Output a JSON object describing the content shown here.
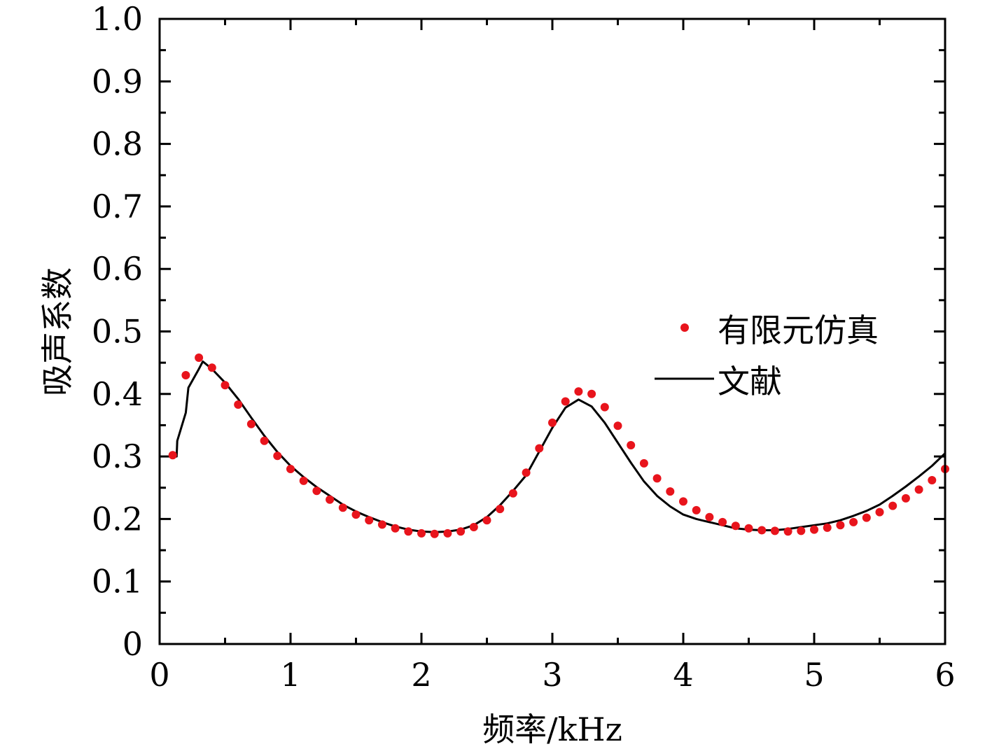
{
  "chart_data": {
    "type": "line",
    "title": "",
    "xlabel": "频率/kHz",
    "ylabel": "吸声系数",
    "xlim": [
      0,
      6
    ],
    "ylim": [
      0,
      1.0
    ],
    "grid": false,
    "legend_position": "right",
    "x_ticks": [
      {
        "value": 0,
        "label": "0"
      },
      {
        "value": 1,
        "label": "1"
      },
      {
        "value": 2,
        "label": "2"
      },
      {
        "value": 3,
        "label": "3"
      },
      {
        "value": 4,
        "label": "4"
      },
      {
        "value": 5,
        "label": "5"
      },
      {
        "value": 6,
        "label": "6"
      }
    ],
    "y_ticks": [
      {
        "value": 0,
        "label": "0"
      },
      {
        "value": 0.1,
        "label": "0.1"
      },
      {
        "value": 0.2,
        "label": "0.2"
      },
      {
        "value": 0.3,
        "label": "0.3"
      },
      {
        "value": 0.4,
        "label": "0.4"
      },
      {
        "value": 0.5,
        "label": "0.5"
      },
      {
        "value": 0.6,
        "label": "0.6"
      },
      {
        "value": 0.7,
        "label": "0.7"
      },
      {
        "value": 0.8,
        "label": "0.8"
      },
      {
        "value": 0.9,
        "label": "0.9"
      },
      {
        "value": 1.0,
        "label": "1.0"
      }
    ],
    "series": [
      {
        "name": "有限元仿真",
        "kind": "scatter",
        "color": "#e8141c",
        "points": [
          [
            0.1,
            0.302
          ],
          [
            0.2,
            0.43
          ],
          [
            0.3,
            0.458
          ],
          [
            0.4,
            0.442
          ],
          [
            0.5,
            0.414
          ],
          [
            0.6,
            0.383
          ],
          [
            0.7,
            0.352
          ],
          [
            0.8,
            0.325
          ],
          [
            0.9,
            0.301
          ],
          [
            1.0,
            0.28
          ],
          [
            1.1,
            0.261
          ],
          [
            1.2,
            0.245
          ],
          [
            1.3,
            0.231
          ],
          [
            1.4,
            0.218
          ],
          [
            1.5,
            0.207
          ],
          [
            1.6,
            0.198
          ],
          [
            1.7,
            0.191
          ],
          [
            1.8,
            0.185
          ],
          [
            1.9,
            0.18
          ],
          [
            2.0,
            0.177
          ],
          [
            2.1,
            0.176
          ],
          [
            2.2,
            0.177
          ],
          [
            2.3,
            0.18
          ],
          [
            2.4,
            0.187
          ],
          [
            2.5,
            0.198
          ],
          [
            2.6,
            0.216
          ],
          [
            2.7,
            0.241
          ],
          [
            2.8,
            0.274
          ],
          [
            2.9,
            0.313
          ],
          [
            3.0,
            0.354
          ],
          [
            3.1,
            0.388
          ],
          [
            3.2,
            0.404
          ],
          [
            3.3,
            0.4
          ],
          [
            3.4,
            0.379
          ],
          [
            3.5,
            0.349
          ],
          [
            3.6,
            0.318
          ],
          [
            3.7,
            0.289
          ],
          [
            3.8,
            0.265
          ],
          [
            3.9,
            0.244
          ],
          [
            4.0,
            0.228
          ],
          [
            4.1,
            0.214
          ],
          [
            4.2,
            0.203
          ],
          [
            4.3,
            0.195
          ],
          [
            4.4,
            0.189
          ],
          [
            4.5,
            0.185
          ],
          [
            4.6,
            0.182
          ],
          [
            4.7,
            0.181
          ],
          [
            4.8,
            0.18
          ],
          [
            4.9,
            0.181
          ],
          [
            5.0,
            0.183
          ],
          [
            5.1,
            0.186
          ],
          [
            5.2,
            0.19
          ],
          [
            5.3,
            0.195
          ],
          [
            5.4,
            0.202
          ],
          [
            5.5,
            0.211
          ],
          [
            5.6,
            0.221
          ],
          [
            5.7,
            0.233
          ],
          [
            5.8,
            0.247
          ],
          [
            5.9,
            0.262
          ],
          [
            6.0,
            0.28
          ]
        ]
      },
      {
        "name": "文献",
        "kind": "line",
        "color": "#000000",
        "points": [
          [
            0.1,
            0.3
          ],
          [
            0.13,
            0.3
          ],
          [
            0.135,
            0.325
          ],
          [
            0.2,
            0.37
          ],
          [
            0.22,
            0.41
          ],
          [
            0.3,
            0.44
          ],
          [
            0.33,
            0.452
          ],
          [
            0.4,
            0.44
          ],
          [
            0.5,
            0.418
          ],
          [
            0.6,
            0.392
          ],
          [
            0.7,
            0.362
          ],
          [
            0.8,
            0.333
          ],
          [
            0.9,
            0.307
          ],
          [
            1.0,
            0.285
          ],
          [
            1.1,
            0.267
          ],
          [
            1.2,
            0.251
          ],
          [
            1.3,
            0.237
          ],
          [
            1.4,
            0.223
          ],
          [
            1.5,
            0.212
          ],
          [
            1.6,
            0.203
          ],
          [
            1.7,
            0.195
          ],
          [
            1.8,
            0.188
          ],
          [
            1.9,
            0.183
          ],
          [
            2.0,
            0.18
          ],
          [
            2.1,
            0.179
          ],
          [
            2.2,
            0.18
          ],
          [
            2.3,
            0.183
          ],
          [
            2.4,
            0.19
          ],
          [
            2.5,
            0.203
          ],
          [
            2.6,
            0.222
          ],
          [
            2.7,
            0.245
          ],
          [
            2.8,
            0.27
          ],
          [
            2.9,
            0.308
          ],
          [
            3.0,
            0.346
          ],
          [
            3.1,
            0.378
          ],
          [
            3.2,
            0.391
          ],
          [
            3.3,
            0.38
          ],
          [
            3.4,
            0.354
          ],
          [
            3.5,
            0.322
          ],
          [
            3.6,
            0.29
          ],
          [
            3.7,
            0.26
          ],
          [
            3.8,
            0.237
          ],
          [
            3.9,
            0.22
          ],
          [
            4.0,
            0.207
          ],
          [
            4.1,
            0.2
          ],
          [
            4.2,
            0.195
          ],
          [
            4.3,
            0.19
          ],
          [
            4.4,
            0.185
          ],
          [
            4.5,
            0.183
          ],
          [
            4.6,
            0.182
          ],
          [
            4.7,
            0.182
          ],
          [
            4.8,
            0.184
          ],
          [
            4.9,
            0.187
          ],
          [
            5.0,
            0.19
          ],
          [
            5.1,
            0.193
          ],
          [
            5.2,
            0.198
          ],
          [
            5.3,
            0.205
          ],
          [
            5.4,
            0.213
          ],
          [
            5.5,
            0.223
          ],
          [
            5.6,
            0.237
          ],
          [
            5.7,
            0.252
          ],
          [
            5.8,
            0.268
          ],
          [
            5.9,
            0.285
          ],
          [
            6.0,
            0.305
          ]
        ]
      }
    ]
  }
}
